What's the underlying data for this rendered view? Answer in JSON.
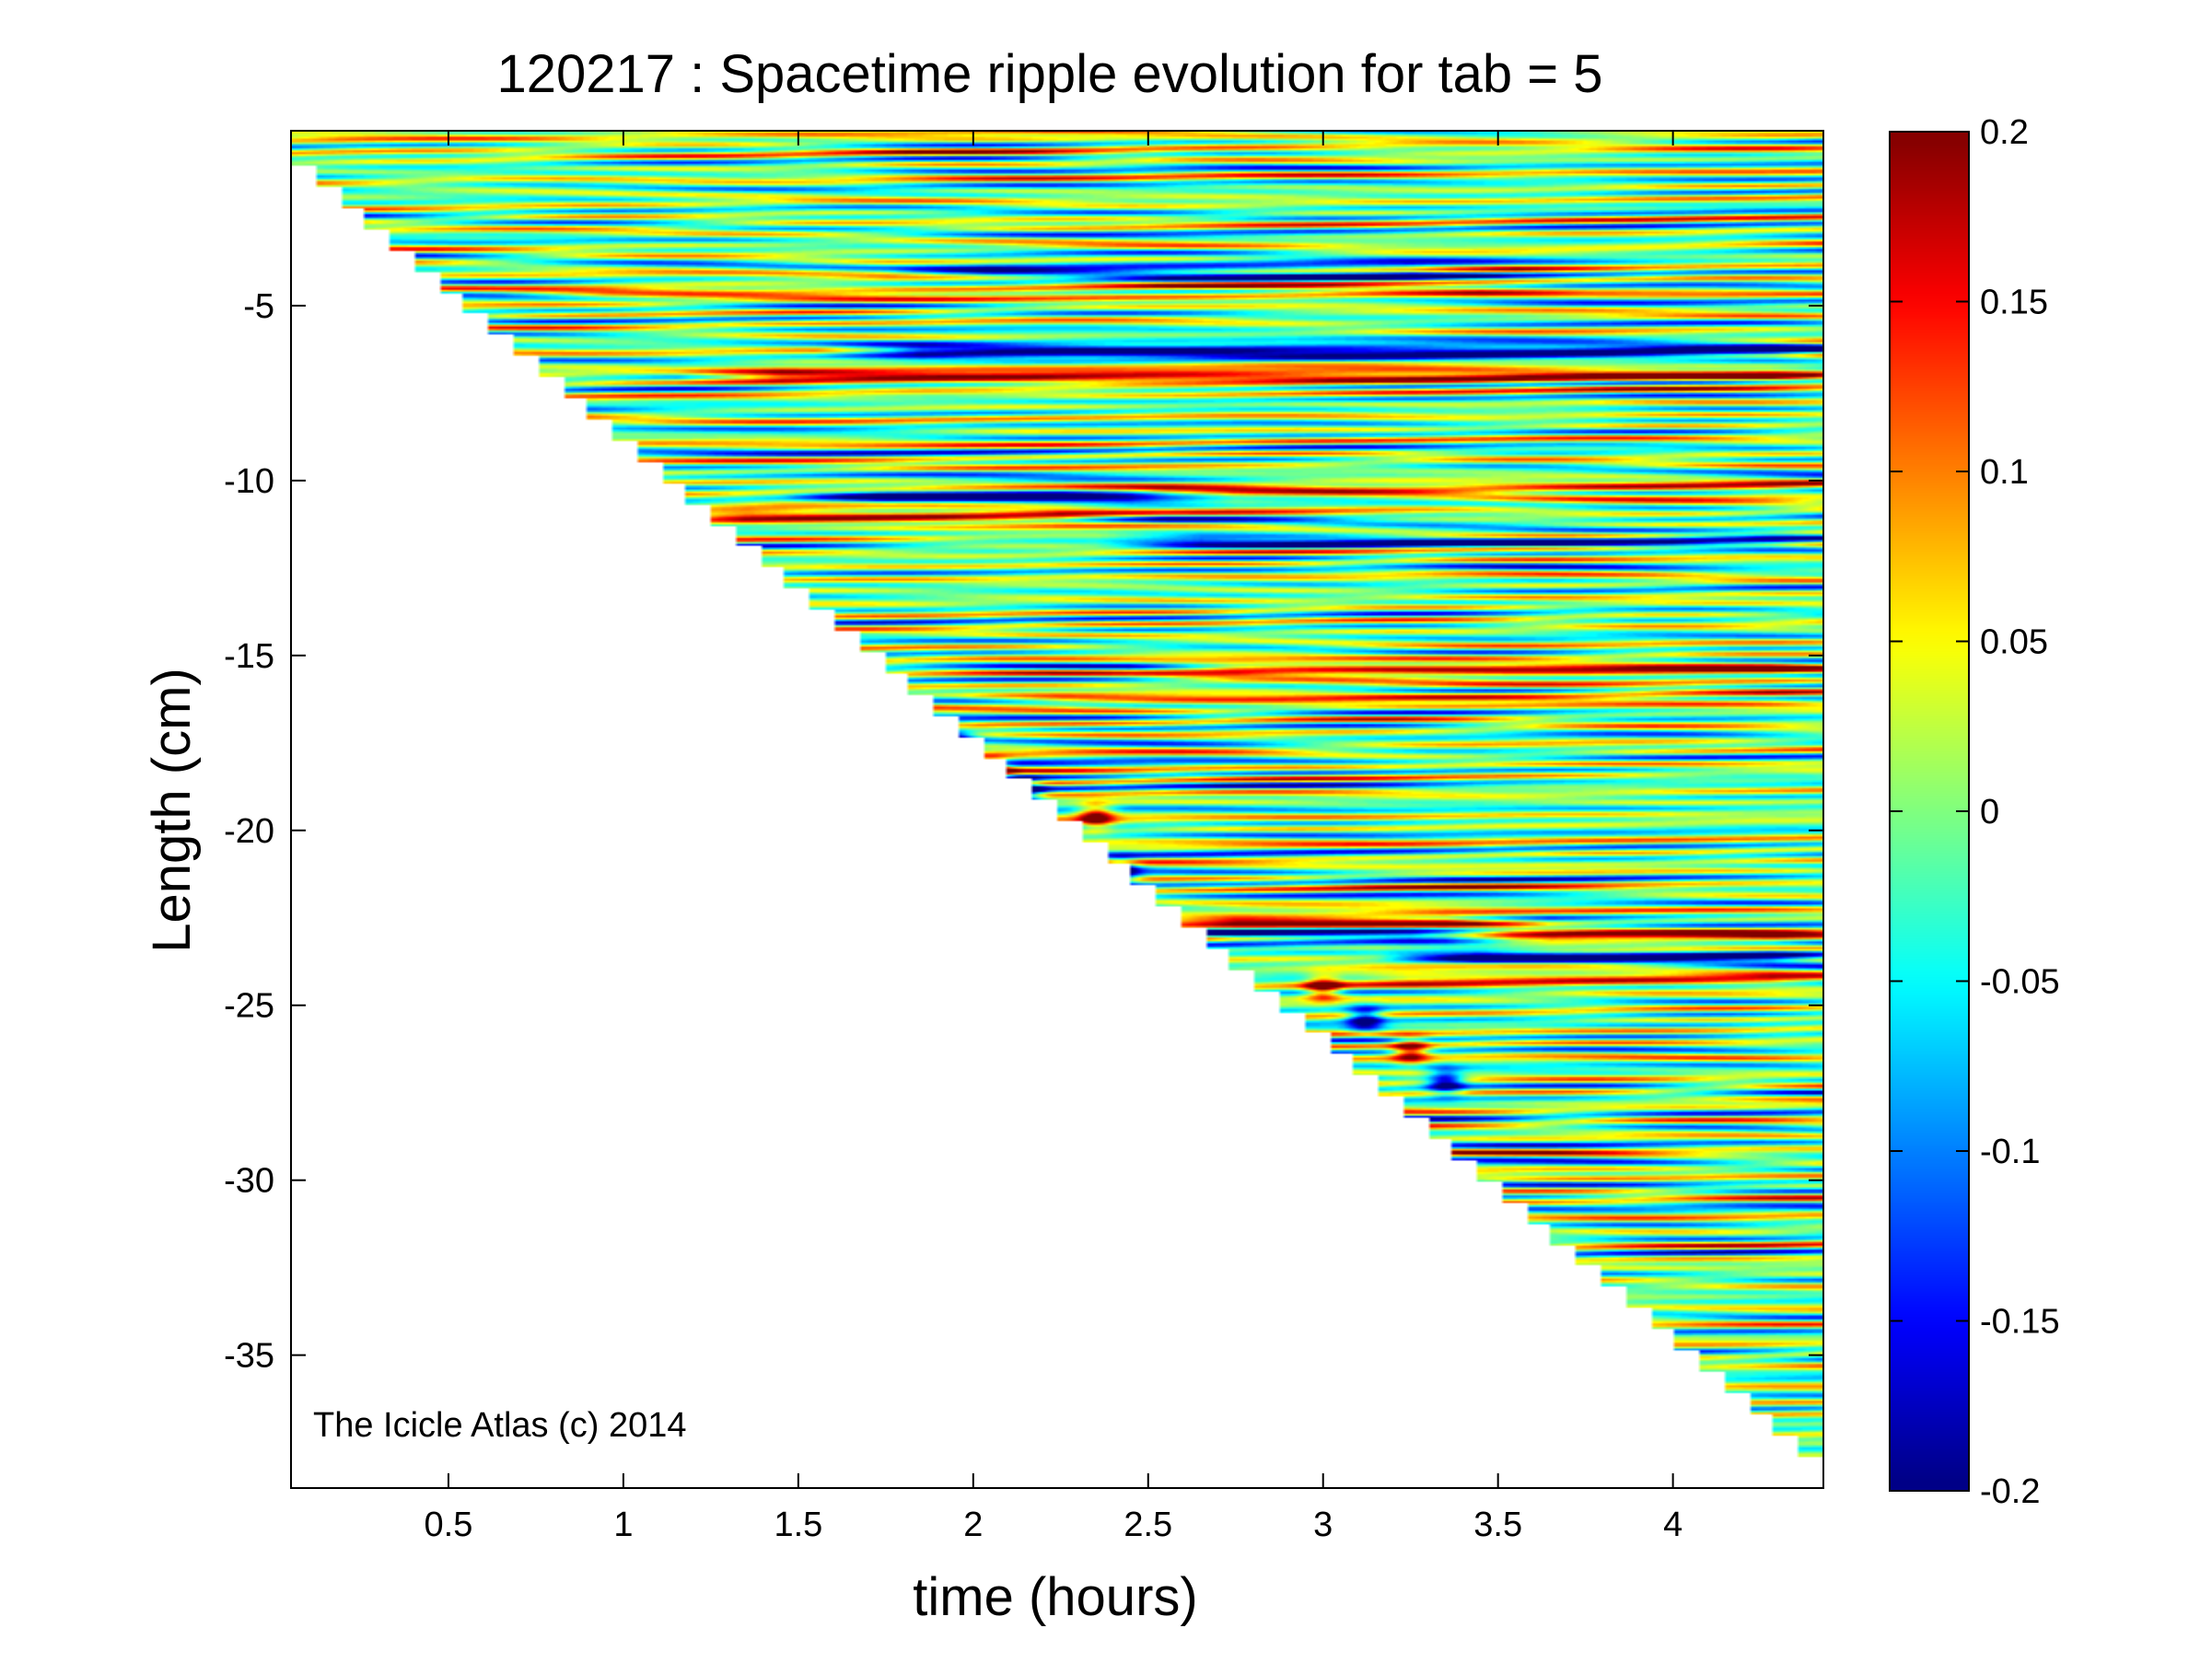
{
  "chart_data": {
    "type": "heatmap",
    "title": "120217 : Spacetime ripple evolution for tab = 5",
    "xlabel": "time (hours)",
    "ylabel": "Length (cm)",
    "xlim": [
      0.05,
      4.43
    ],
    "ylim": [
      -38.8,
      0
    ],
    "x_ticks": [
      0.5,
      1,
      1.5,
      2,
      2.5,
      3,
      3.5,
      4
    ],
    "x_tick_labels": [
      "0.5",
      "1",
      "1.5",
      "2",
      "2.5",
      "3",
      "3.5",
      "4"
    ],
    "y_ticks": [
      -5,
      -10,
      -15,
      -20,
      -25,
      -30,
      -35
    ],
    "y_tick_labels": [
      "-5",
      "-10",
      "-15",
      "-20",
      "-25",
      "-30",
      "-35"
    ],
    "colormap": "jet",
    "clim": [
      -0.2,
      0.2
    ],
    "colorbar_ticks": [
      0.2,
      0.15,
      0.1,
      0.05,
      0,
      -0.05,
      -0.1,
      -0.15,
      -0.2
    ],
    "colorbar_tick_labels": [
      "0.2",
      "0.15",
      "0.1",
      "0.05",
      "0",
      "-0.05",
      "-0.1",
      "-0.15",
      "-0.2"
    ],
    "grid": false,
    "annotation": "The Icicle Atlas (c) 2014",
    "description_of_field": {
      "background_value": 0.0,
      "lower_edge": "data region bounded by icicle tip: length grows from about -1 cm at t=0.05 h to about -38.5 cm at t=4.43 h",
      "stripes": [
        {
          "y": -0.3,
          "amp": 0.05,
          "t_start": 0.05,
          "t_end": 4.43
        },
        {
          "y": -4.0,
          "amp": -0.14,
          "t_start": 1.9,
          "t_end": 3.4
        },
        {
          "y": -4.6,
          "amp": 0.08,
          "t_start": 0.8,
          "t_end": 3.6
        },
        {
          "y": -6.3,
          "amp": -0.19,
          "t_start": 1.7,
          "t_end": 4.43
        },
        {
          "y": -7.0,
          "amp": 0.17,
          "t_start": 1.3,
          "t_end": 4.43
        },
        {
          "y": -10.3,
          "amp": 0.1,
          "t_start": 2.4,
          "t_end": 4.43
        },
        {
          "y": -10.5,
          "amp": -0.15,
          "t_start": 1.6,
          "t_end": 2.6
        },
        {
          "y": -11.0,
          "amp": 0.15,
          "t_start": 1.2,
          "t_end": 2.4
        },
        {
          "y": -11.7,
          "amp": -0.12,
          "t_start": 2.5,
          "t_end": 4.43
        },
        {
          "y": -15.4,
          "amp": 0.14,
          "t_start": 2.6,
          "t_end": 4.43
        },
        {
          "y": -16.2,
          "amp": 0.08,
          "t_start": 2.1,
          "t_end": 4.43
        },
        {
          "y": -22.6,
          "amp": 0.18,
          "t_start": 2.6,
          "t_end": 3.5
        },
        {
          "y": -23.0,
          "amp": -0.16,
          "t_start": 2.6,
          "t_end": 3.4
        },
        {
          "y": -23.1,
          "amp": 0.16,
          "t_start": 3.5,
          "t_end": 4.43
        },
        {
          "y": -23.6,
          "amp": -0.2,
          "t_start": 3.3,
          "t_end": 4.43
        },
        {
          "y": -24.2,
          "amp": 0.12,
          "t_start": 3.1,
          "t_end": 4.43
        }
      ],
      "tip_blobs": [
        {
          "t": 1.95,
          "y": -17.5,
          "amp": -0.2
        },
        {
          "t": 2.05,
          "y": -18.3,
          "amp": 0.2
        },
        {
          "t": 2.15,
          "y": -18.9,
          "amp": -0.2
        },
        {
          "t": 2.35,
          "y": -19.6,
          "amp": 0.2
        },
        {
          "t": 2.42,
          "y": -21.2,
          "amp": -0.2
        },
        {
          "t": 3.0,
          "y": -24.5,
          "amp": 0.2
        },
        {
          "t": 3.12,
          "y": -25.4,
          "amp": -0.2
        },
        {
          "t": 3.25,
          "y": -26.3,
          "amp": 0.2
        },
        {
          "t": 3.35,
          "y": -27.2,
          "amp": -0.2
        }
      ]
    }
  }
}
